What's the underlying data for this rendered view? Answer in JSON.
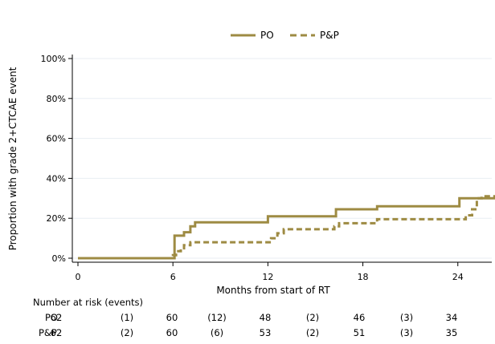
{
  "chart_data": {
    "type": "line",
    "title": "",
    "xlabel": "Months from start of RT",
    "ylabel": "Proportion with grade 2+CTCAE event",
    "xlim": [
      0,
      26.5
    ],
    "ylim": [
      0,
      100
    ],
    "x_ticks": [
      0,
      6,
      12,
      18,
      24
    ],
    "y_ticks": [
      0,
      20,
      40,
      60,
      80,
      100
    ],
    "y_tick_labels": [
      "0%",
      "20%",
      "40%",
      "60%",
      "80%",
      "100%"
    ],
    "grid": true,
    "legend_position": "top-center",
    "colors": {
      "series": "#9e8b43",
      "axis": "#000000",
      "grid": "#e8eef3"
    },
    "series": [
      {
        "name": "PO",
        "style": "solid",
        "x": [
          0,
          5.9,
          6.1,
          6.4,
          6.7,
          7.1,
          7.4,
          11.7,
          12.0,
          16.1,
          16.3,
          18.9,
          24.1,
          26.5
        ],
        "y": [
          0,
          0,
          11.3,
          11.3,
          13,
          16,
          18,
          18,
          21,
          21,
          24.5,
          26,
          30,
          30
        ]
      },
      {
        "name": "P&P",
        "style": "dashed",
        "x": [
          0,
          5.8,
          6.0,
          6.2,
          6.5,
          6.7,
          7.1,
          7.5,
          11.9,
          12.2,
          12.6,
          13.0,
          15.9,
          16.2,
          16.5,
          18.9,
          24.0,
          24.5,
          24.9,
          25.2,
          25.5,
          26.5
        ],
        "y": [
          0,
          0,
          1.5,
          3.5,
          5,
          6.5,
          8,
          8,
          8,
          10,
          12.5,
          14.5,
          14.5,
          16,
          17.5,
          19.5,
          19.5,
          21.5,
          24.5,
          30,
          31,
          31
        ]
      }
    ],
    "risk_table": {
      "title": "Number at risk (events)",
      "columns": [
        "62",
        "(1)",
        "60",
        "(12)",
        "48",
        "(2)",
        "46",
        "(3)",
        "34"
      ],
      "rows": [
        {
          "label": "PO",
          "values": [
            "62",
            "(1)",
            "60",
            "(12)",
            "48",
            "(2)",
            "46",
            "(3)",
            "34"
          ]
        },
        {
          "label": "P&P",
          "values": [
            "62",
            "(2)",
            "60",
            "(6)",
            "53",
            "(2)",
            "51",
            "(3)",
            "35"
          ]
        }
      ]
    }
  }
}
